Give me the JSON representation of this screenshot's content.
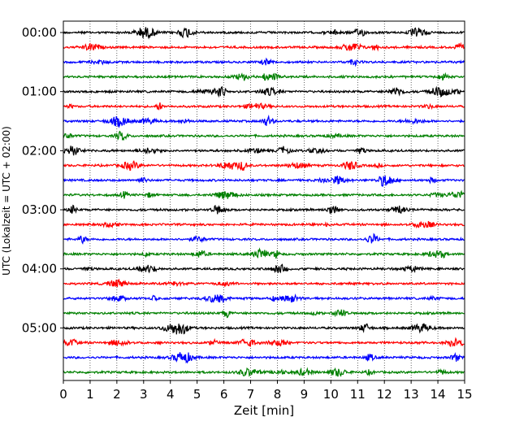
{
  "chart_data": {
    "type": "line",
    "chart_kind": "helicorder / seismogram drum plot",
    "xlabel": "Zeit  [min]",
    "ylabel": "UTC (Lokalzeit = UTC + 02:00)",
    "xlim": [
      0,
      15
    ],
    "x_ticks": [
      0,
      1,
      2,
      3,
      4,
      5,
      6,
      7,
      8,
      9,
      10,
      11,
      12,
      13,
      14,
      15
    ],
    "x_tick_labels": [
      "0",
      "1",
      "2",
      "3",
      "4",
      "5",
      "6",
      "7",
      "8",
      "9",
      "10",
      "11",
      "12",
      "13",
      "14",
      "15"
    ],
    "y_tick_labels": [
      "00:00",
      "01:00",
      "02:00",
      "03:00",
      "04:00",
      "05:00"
    ],
    "y_ticks_minutes": [
      0,
      60,
      120,
      180,
      240,
      300
    ],
    "trace_interval_minutes": 15,
    "traces": 24,
    "trace_color_cycle": [
      "#000000",
      "#ff0000",
      "#0000ff",
      "#008000"
    ],
    "grid": "vertical dotted lines at each minute",
    "legend": "none"
  }
}
